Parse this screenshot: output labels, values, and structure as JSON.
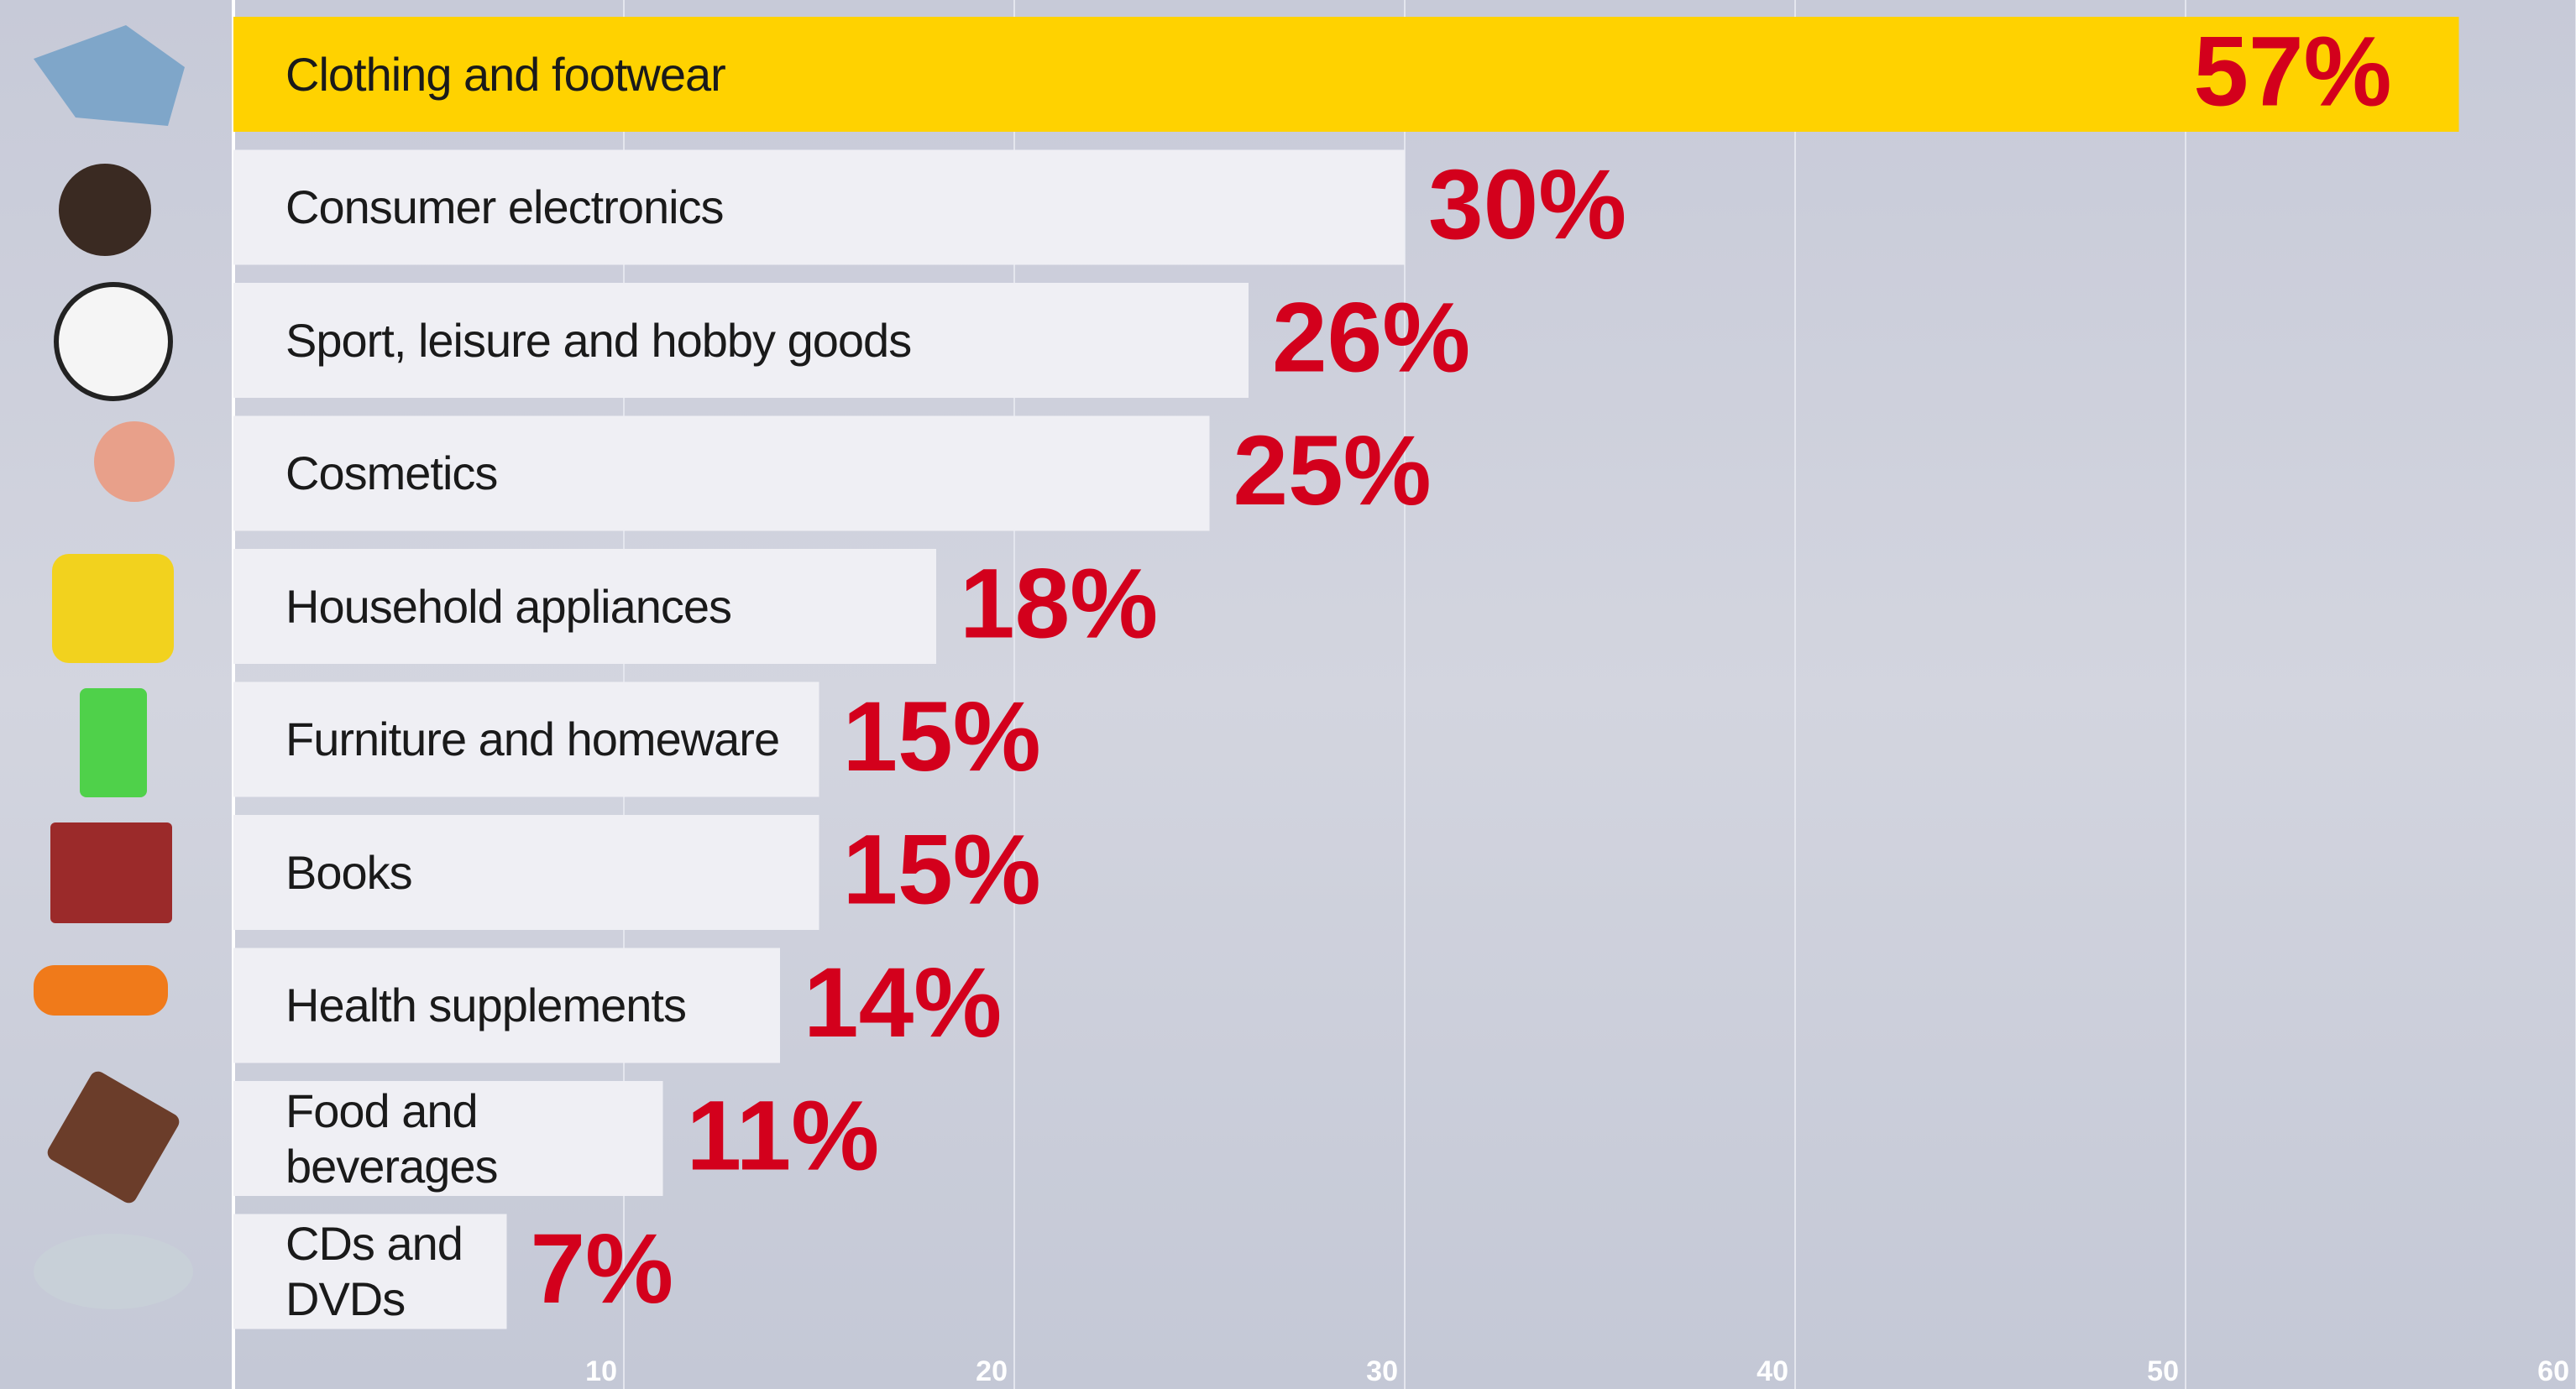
{
  "chart_data": {
    "type": "bar",
    "orientation": "horizontal",
    "categories": [
      "Clothing and footwear",
      "Consumer electronics",
      "Sport, leisure and hobby goods",
      "Cosmetics",
      "Household appliances",
      "Furniture and homeware",
      "Books",
      "Health supplements",
      "Food and beverages",
      "CDs and DVDs"
    ],
    "values": [
      57,
      30,
      26,
      25,
      18,
      15,
      15,
      14,
      11,
      7
    ],
    "value_labels": [
      "57%",
      "30%",
      "26%",
      "25%",
      "18%",
      "15%",
      "15%",
      "14%",
      "11%",
      "7%"
    ],
    "colors": [
      "#ffd200",
      "#efeff4",
      "#efeff4",
      "#efeff4",
      "#efeff4",
      "#efeff4",
      "#efeff4",
      "#efeff4",
      "#efeff4",
      "#efeff4"
    ],
    "value_label_color": "#d3001c",
    "xlim": [
      0,
      60
    ],
    "xticks": [
      10,
      20,
      30,
      40,
      50,
      60
    ],
    "grid": true
  }
}
